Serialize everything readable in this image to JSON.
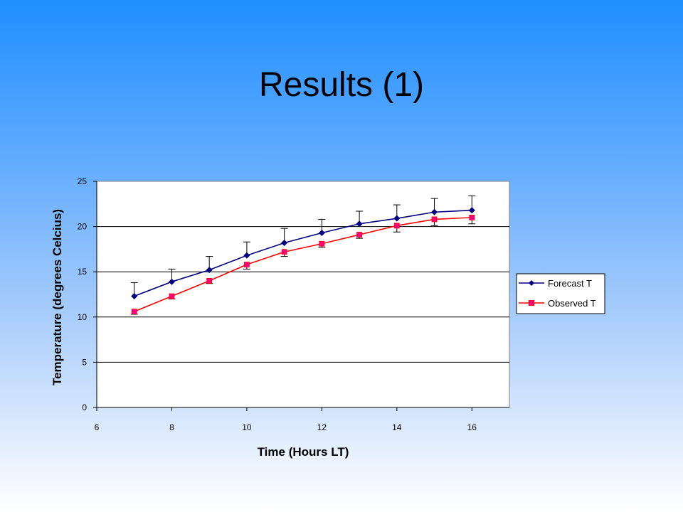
{
  "slide": {
    "title": "Results (1)"
  },
  "colors": {
    "forecast": "#000080",
    "observed": "#ff0080",
    "observed_line": "#ff0000"
  },
  "chart_data": {
    "type": "line",
    "title": "",
    "xlabel": "Time (Hours LT)",
    "ylabel": "Temperature (degrees Celcius)",
    "xlim": [
      6,
      17
    ],
    "ylim": [
      0,
      25
    ],
    "xticks": [
      6,
      8,
      10,
      12,
      14,
      16
    ],
    "yticks": [
      0,
      5,
      10,
      15,
      20,
      25
    ],
    "grid": "horizontal",
    "legend_position": "right",
    "x": [
      7,
      8,
      9,
      10,
      11,
      12,
      13,
      14,
      15,
      16
    ],
    "series": [
      {
        "name": "Forecast T",
        "marker": "diamond",
        "values": [
          12.3,
          13.9,
          15.2,
          16.8,
          18.2,
          19.3,
          20.3,
          20.9,
          21.6,
          21.8
        ],
        "error_plus": [
          1.5,
          1.4,
          1.5,
          1.5,
          1.6,
          1.5,
          1.4,
          1.5,
          1.5,
          1.6
        ]
      },
      {
        "name": "Observed T",
        "marker": "square",
        "values": [
          10.6,
          12.3,
          14.0,
          15.8,
          17.2,
          18.1,
          19.1,
          20.1,
          20.8,
          21.0
        ],
        "error_minus": [
          0.3,
          0.3,
          0.3,
          0.5,
          0.5,
          0.4,
          0.4,
          0.7,
          0.7,
          0.7
        ]
      }
    ]
  }
}
